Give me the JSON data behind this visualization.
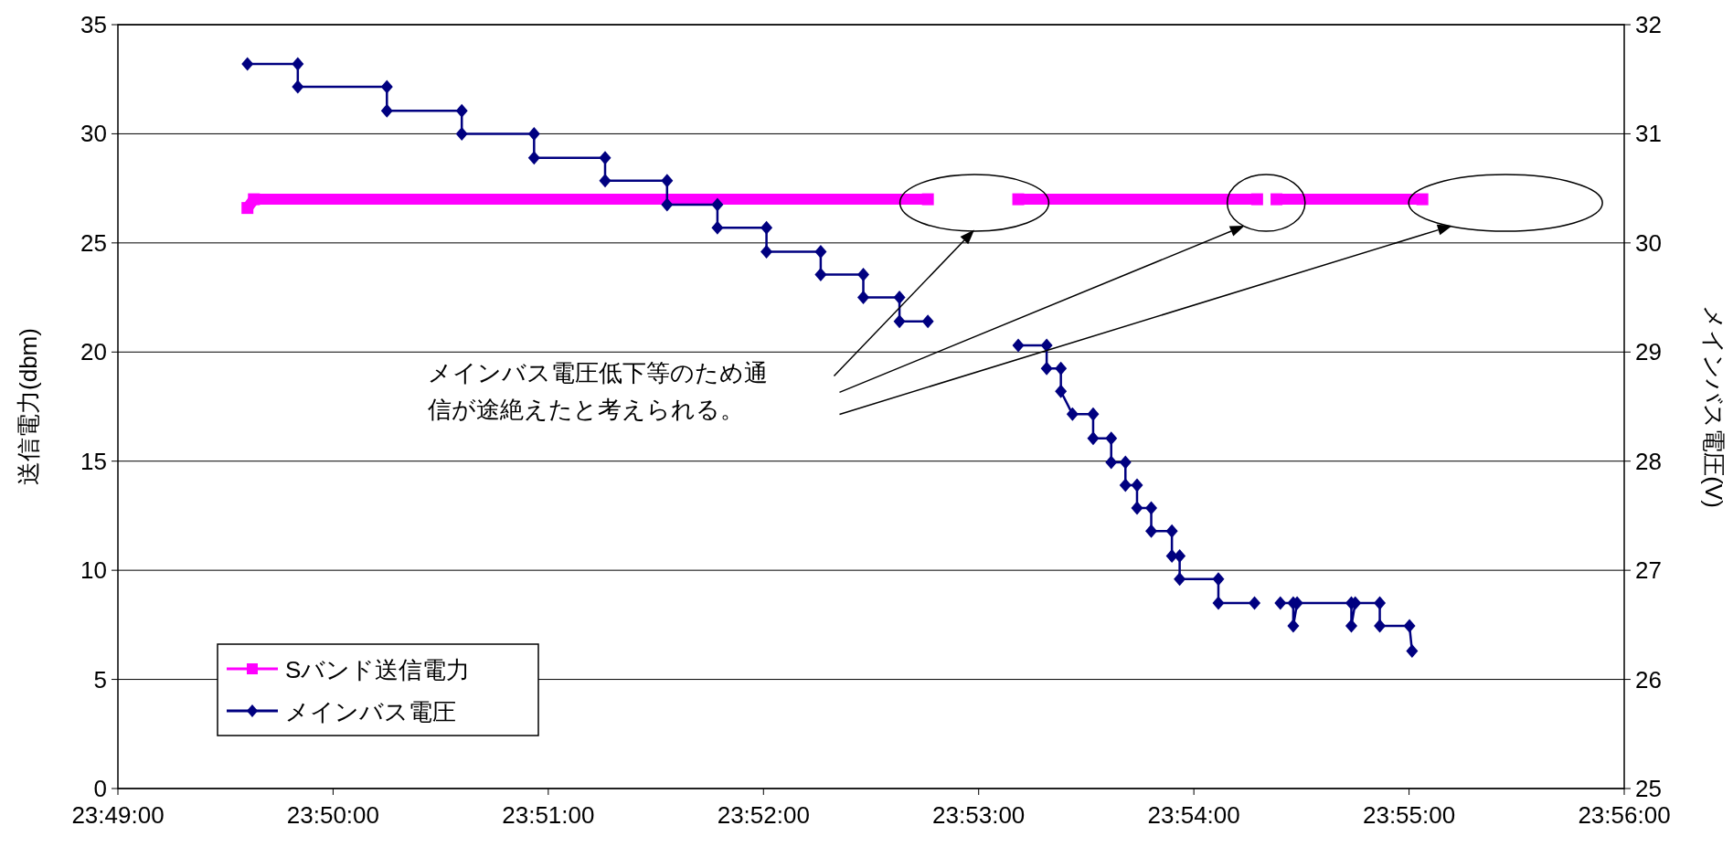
{
  "chart_data": {
    "type": "line",
    "ylabel": "送信電力(dbm)",
    "y2label": "メインバス電圧(V)",
    "xlim": [
      23.816667,
      23.933333
    ],
    "xticks": [
      {
        "value": 23.816667,
        "label": "23:49:00"
      },
      {
        "value": 23.833333,
        "label": "23:50:00"
      },
      {
        "value": 23.85,
        "label": "23:51:00"
      },
      {
        "value": 23.866667,
        "label": "23:52:00"
      },
      {
        "value": 23.883333,
        "label": "23:53:00"
      },
      {
        "value": 23.9,
        "label": "23:54:00"
      },
      {
        "value": 23.916667,
        "label": "23:55:00"
      },
      {
        "value": 23.933333,
        "label": "23:56:00"
      }
    ],
    "ylim": [
      0,
      35
    ],
    "yticks": [
      0,
      5,
      10,
      15,
      20,
      25,
      30,
      35
    ],
    "y2lim": [
      25,
      32
    ],
    "y2ticks": [
      25,
      26,
      27,
      28,
      29,
      30,
      31,
      32
    ],
    "grid": "y",
    "legend": "bottom left",
    "series": [
      {
        "name": "Sバンド送信電力",
        "color": "#ff00ff",
        "marker": "square",
        "axis": "y",
        "x": [
          23.8267,
          23.8272,
          23.8794,
          23.883,
          23.8864,
          23.9049,
          23.9056,
          23.9064,
          23.9177
        ],
        "values": [
          26.6,
          27,
          27,
          null,
          27,
          27,
          null,
          27,
          27
        ]
      },
      {
        "name": "メインバス電圧",
        "color": "#000080",
        "marker": "diamond",
        "axis": "y2",
        "x": [
          23.8267,
          23.8306,
          23.8306,
          23.8375,
          23.8375,
          23.8433,
          23.8433,
          23.8489,
          23.8489,
          23.8544,
          23.8544,
          23.8592,
          23.8592,
          23.8631,
          23.8631,
          23.8669,
          23.8669,
          23.8711,
          23.8711,
          23.8744,
          23.8744,
          23.8772,
          23.8772,
          23.8794,
          23.883,
          23.8864,
          23.8886,
          23.8886,
          23.8897,
          23.8897,
          23.8906,
          23.8922,
          23.8922,
          23.8936,
          23.8936,
          23.8947,
          23.8947,
          23.8956,
          23.8956,
          23.8967,
          23.8967,
          23.8983,
          23.8983,
          23.8989,
          23.8989,
          23.9019,
          23.9019,
          23.9047,
          23.9056,
          23.9067,
          23.9077,
          23.9077,
          23.908,
          23.9122,
          23.9122,
          23.9125,
          23.9144,
          23.9144,
          23.9167,
          23.9169
        ],
        "values": [
          31.64,
          31.64,
          31.43,
          31.43,
          31.21,
          31.21,
          31.0,
          31.0,
          30.78,
          30.78,
          30.57,
          30.57,
          30.35,
          30.35,
          30.14,
          30.14,
          29.92,
          29.92,
          29.71,
          29.71,
          29.5,
          29.5,
          29.28,
          29.28,
          null,
          29.06,
          29.06,
          28.85,
          28.85,
          28.64,
          28.43,
          28.43,
          28.21,
          28.21,
          27.99,
          27.99,
          27.78,
          27.78,
          27.57,
          27.57,
          27.36,
          27.36,
          27.13,
          27.13,
          26.92,
          26.92,
          26.7,
          26.7,
          null,
          26.7,
          26.7,
          26.49,
          26.7,
          26.7,
          26.49,
          26.7,
          26.7,
          26.49,
          26.49,
          26.26
        ]
      }
    ],
    "annotations": [
      "メインバス電圧低下等のため通信が途絶えたと考えられる。"
    ]
  }
}
